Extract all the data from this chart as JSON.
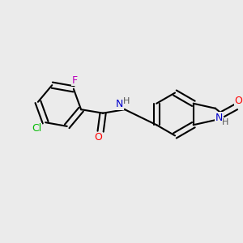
{
  "bg_color": "#ebebeb",
  "bond_color": "#000000",
  "bond_lw": 1.5,
  "atom_colors": {
    "N": "#0000cc",
    "O": "#ff0000",
    "Cl": "#00bb00",
    "F": "#bb00bb",
    "C": "#000000",
    "H": "#555555"
  },
  "font_size": 9,
  "label_font_size": 9
}
